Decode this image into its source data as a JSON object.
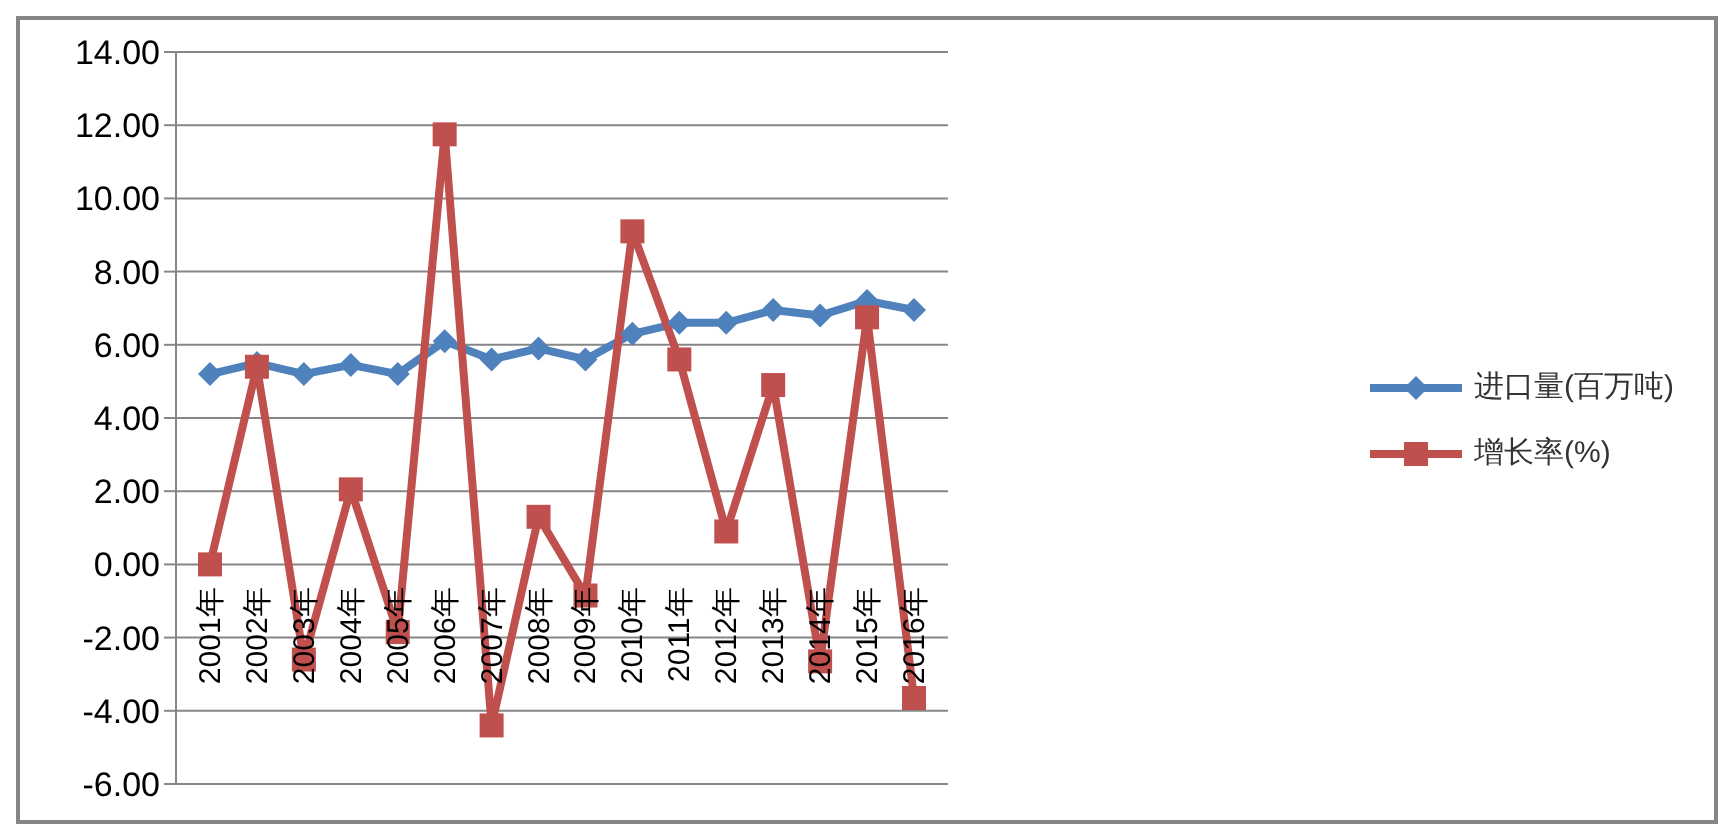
{
  "chart_data": {
    "type": "line",
    "categories": [
      "2001年",
      "2002年",
      "2003年",
      "2004年",
      "2005年",
      "2006年",
      "2007年",
      "2008年",
      "2009年",
      "2010年",
      "2011年",
      "2012年",
      "2013年",
      "2014年",
      "2015年",
      "2016年"
    ],
    "series": [
      {
        "name": "进口量(百万吨)",
        "color": "#4f81bd",
        "marker": "diamond",
        "values": [
          5.2,
          5.5,
          5.2,
          5.45,
          5.2,
          6.1,
          5.6,
          5.9,
          5.6,
          6.3,
          6.6,
          6.6,
          6.95,
          6.8,
          7.2,
          6.95
        ]
      },
      {
        "name": "增长率(%)",
        "color": "#c0504d",
        "marker": "square",
        "values": [
          0,
          5.4,
          -2.6,
          2.05,
          -1.85,
          11.75,
          -4.4,
          1.3,
          -0.85,
          9.1,
          5.6,
          0.9,
          4.9,
          -2.65,
          6.75,
          -3.65
        ]
      }
    ],
    "ylim": [
      -6,
      14
    ],
    "yticks": [
      {
        "value": -6,
        "label": "-6.00"
      },
      {
        "value": -4,
        "label": "-4.00"
      },
      {
        "value": -2,
        "label": "-2.00"
      },
      {
        "value": 0,
        "label": "0.00"
      },
      {
        "value": 2,
        "label": "2.00"
      },
      {
        "value": 4,
        "label": "4.00"
      },
      {
        "value": 6,
        "label": "6.00"
      },
      {
        "value": 8,
        "label": "8.00"
      },
      {
        "value": 10,
        "label": "10.00"
      },
      {
        "value": 12,
        "label": "12.00"
      },
      {
        "value": 14,
        "label": "14.00"
      }
    ],
    "grid": "y",
    "legend": "right",
    "line_style": "solid"
  }
}
